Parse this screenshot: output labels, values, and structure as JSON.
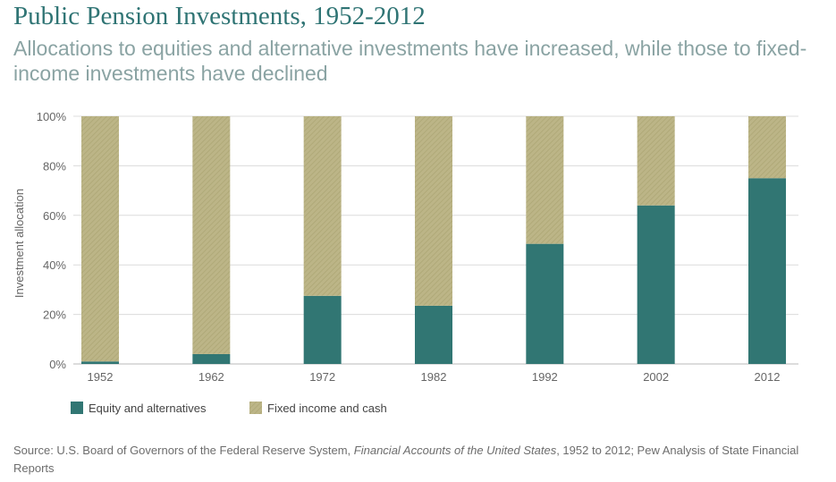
{
  "colors": {
    "equity": "#317673",
    "fixed": "#bcb587",
    "fixed_hatch": "#ada775",
    "grid": "#dcdcdc",
    "axis_text": "#666666",
    "title": "#2f7474",
    "subtitle": "#8aa3a3"
  },
  "chart_data": {
    "type": "bar",
    "stacked": true,
    "title": "Public Pension Investments, 1952-2012",
    "subtitle": "Allocations to equities and alternative investments have increased, while those to fixed-income investments have declined",
    "xlabel": "",
    "ylabel": "Investment allocation",
    "ylim": [
      0,
      100
    ],
    "yticks": [
      "0%",
      "20%",
      "40%",
      "60%",
      "80%",
      "100%"
    ],
    "ytick_values": [
      0,
      20,
      40,
      60,
      80,
      100
    ],
    "grid": true,
    "legend_position": "bottom-left",
    "categories": [
      "1952",
      "1962",
      "1972",
      "1982",
      "1992",
      "2002",
      "2012"
    ],
    "series": [
      {
        "name": "Equity and alternatives",
        "values": [
          1,
          4,
          27.5,
          23.5,
          48.5,
          64,
          75
        ]
      },
      {
        "name": "Fixed income and cash",
        "values": [
          99,
          96,
          72.5,
          76.5,
          51.5,
          36,
          25
        ]
      }
    ]
  },
  "source": {
    "prefix": "Source: U.S. Board of Governors of the Federal Reserve System, ",
    "italic": "Financial Accounts of the United States",
    "suffix": ", 1952 to 2012; Pew Analysis of State Financial Reports"
  }
}
